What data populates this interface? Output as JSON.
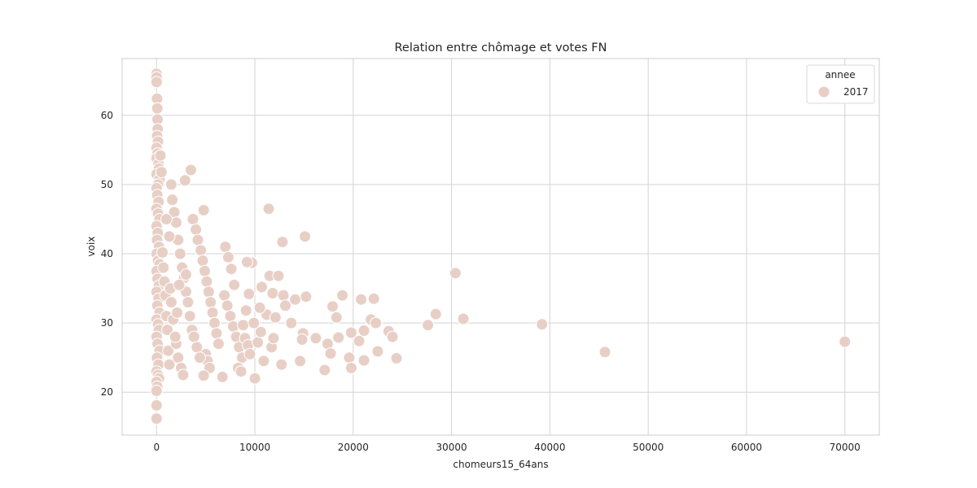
{
  "chart_data": {
    "type": "scatter",
    "title": "Relation entre chômage et votes FN",
    "xlabel": "chomeurs15_64ans",
    "ylabel": "voix",
    "xlim": [
      -3500,
      73500
    ],
    "ylim": [
      13.8,
      68.2
    ],
    "xticks": [
      0,
      10000,
      20000,
      30000,
      40000,
      50000,
      60000,
      70000
    ],
    "xtick_labels": [
      "0",
      "10000",
      "20000",
      "30000",
      "40000",
      "50000",
      "60000",
      "70000"
    ],
    "yticks": [
      20,
      30,
      40,
      50,
      60
    ],
    "ytick_labels": [
      "20",
      "30",
      "40",
      "50",
      "60"
    ],
    "grid": true,
    "legend": {
      "title": "annee",
      "position": "top-right",
      "entries": [
        "2017"
      ]
    },
    "colors": {
      "marker": "#e8cfc6",
      "marker_edge": "#ffffff",
      "grid": "#d4d4d4",
      "spine": "#cccccc",
      "text": "#262626"
    },
    "series": [
      {
        "name": "2017",
        "points": [
          [
            0,
            66
          ],
          [
            0,
            65.5
          ],
          [
            0,
            64.8
          ],
          [
            50,
            62.4
          ],
          [
            80,
            61
          ],
          [
            100,
            59.4
          ],
          [
            120,
            58
          ],
          [
            60,
            57
          ],
          [
            150,
            56.2
          ],
          [
            0,
            55.3
          ],
          [
            100,
            54.5
          ],
          [
            0,
            53.8
          ],
          [
            200,
            53
          ],
          [
            250,
            52.3
          ],
          [
            0,
            51.5
          ],
          [
            300,
            50.8
          ],
          [
            150,
            50
          ],
          [
            0,
            49.5
          ],
          [
            80,
            48.5
          ],
          [
            200,
            47.5
          ],
          [
            0,
            46.5
          ],
          [
            150,
            45.8
          ],
          [
            300,
            45
          ],
          [
            0,
            44
          ],
          [
            120,
            43
          ],
          [
            50,
            42
          ],
          [
            250,
            41
          ],
          [
            0,
            40
          ],
          [
            150,
            39
          ],
          [
            300,
            38.5
          ],
          [
            0,
            37.5
          ],
          [
            100,
            36.4
          ],
          [
            250,
            35.4
          ],
          [
            0,
            34.5
          ],
          [
            200,
            33.5
          ],
          [
            80,
            32.5
          ],
          [
            300,
            31.5
          ],
          [
            0,
            30.5
          ],
          [
            150,
            29.8
          ],
          [
            250,
            29
          ],
          [
            0,
            28
          ],
          [
            100,
            27
          ],
          [
            300,
            26
          ],
          [
            50,
            25
          ],
          [
            200,
            24
          ],
          [
            0,
            23
          ],
          [
            150,
            22.5
          ],
          [
            250,
            22
          ],
          [
            0,
            21.5
          ],
          [
            80,
            20.8
          ],
          [
            0,
            20.2
          ],
          [
            0,
            18.1
          ],
          [
            0,
            16.2
          ],
          [
            400,
            54.2
          ],
          [
            500,
            51.8
          ],
          [
            600,
            40.2
          ],
          [
            700,
            38
          ],
          [
            800,
            36
          ],
          [
            900,
            34
          ],
          [
            1000,
            31
          ],
          [
            1100,
            29
          ],
          [
            1200,
            26
          ],
          [
            1300,
            24
          ],
          [
            1400,
            35
          ],
          [
            1500,
            50
          ],
          [
            1600,
            47.8
          ],
          [
            1800,
            46
          ],
          [
            2000,
            44.5
          ],
          [
            2200,
            42
          ],
          [
            2400,
            40
          ],
          [
            2600,
            38
          ],
          [
            2800,
            36.5
          ],
          [
            3000,
            34.5
          ],
          [
            3200,
            33
          ],
          [
            3400,
            31
          ],
          [
            3600,
            29
          ],
          [
            2000,
            27
          ],
          [
            2200,
            25
          ],
          [
            2500,
            23.5
          ],
          [
            2700,
            22.5
          ],
          [
            3500,
            52.1
          ],
          [
            2900,
            50.6
          ],
          [
            4800,
            46.3
          ],
          [
            3700,
            45
          ],
          [
            4000,
            43.5
          ],
          [
            4200,
            42
          ],
          [
            4500,
            40.5
          ],
          [
            4700,
            39
          ],
          [
            4900,
            37.5
          ],
          [
            5100,
            36
          ],
          [
            5300,
            34.5
          ],
          [
            5500,
            33
          ],
          [
            5700,
            31.5
          ],
          [
            5900,
            30
          ],
          [
            6100,
            28.5
          ],
          [
            6300,
            27
          ],
          [
            5000,
            25.5
          ],
          [
            5200,
            24.5
          ],
          [
            5400,
            23.5
          ],
          [
            4800,
            22.4
          ],
          [
            6700,
            22.2
          ],
          [
            3800,
            28
          ],
          [
            4100,
            26.5
          ],
          [
            4400,
            25
          ],
          [
            3000,
            37
          ],
          [
            1500,
            33
          ],
          [
            1700,
            30.5
          ],
          [
            1900,
            28
          ],
          [
            2100,
            31.5
          ],
          [
            2300,
            35.5
          ],
          [
            1000,
            45
          ],
          [
            1300,
            42.5
          ],
          [
            7000,
            41
          ],
          [
            7300,
            39.5
          ],
          [
            7600,
            37.8
          ],
          [
            7900,
            35.5
          ],
          [
            6900,
            34
          ],
          [
            7200,
            32.5
          ],
          [
            7500,
            31
          ],
          [
            7800,
            29.5
          ],
          [
            8100,
            28
          ],
          [
            8400,
            26.5
          ],
          [
            8700,
            25
          ],
          [
            8300,
            23.5
          ],
          [
            8600,
            23
          ],
          [
            8800,
            29.7
          ],
          [
            9000,
            27.8
          ],
          [
            9300,
            26.8
          ],
          [
            9500,
            25.5
          ],
          [
            9100,
            31.8
          ],
          [
            9400,
            34.2
          ],
          [
            9700,
            38.7
          ],
          [
            9200,
            38.8
          ],
          [
            10000,
            22
          ],
          [
            10300,
            27.2
          ],
          [
            10600,
            28.7
          ],
          [
            10900,
            24.5
          ],
          [
            11200,
            31.2
          ],
          [
            11500,
            36.8
          ],
          [
            11800,
            34.3
          ],
          [
            12100,
            30.8
          ],
          [
            12400,
            36.8
          ],
          [
            11400,
            46.5
          ],
          [
            12800,
            41.7
          ],
          [
            12900,
            34
          ],
          [
            13100,
            32.5
          ],
          [
            12700,
            24
          ],
          [
            11700,
            26.5
          ],
          [
            11900,
            27.8
          ],
          [
            10700,
            35.2
          ],
          [
            10500,
            32.2
          ],
          [
            9900,
            30
          ],
          [
            13700,
            30
          ],
          [
            14100,
            33.4
          ],
          [
            14600,
            24.5
          ],
          [
            14900,
            28.5
          ],
          [
            14800,
            27.6
          ],
          [
            15200,
            33.8
          ],
          [
            15100,
            42.5
          ],
          [
            16200,
            27.8
          ],
          [
            17100,
            23.2
          ],
          [
            17400,
            27
          ],
          [
            17700,
            25.6
          ],
          [
            17900,
            32.4
          ],
          [
            18300,
            30.8
          ],
          [
            18500,
            27.9
          ],
          [
            18900,
            34
          ],
          [
            19600,
            25
          ],
          [
            19800,
            23.5
          ],
          [
            19800,
            28.6
          ],
          [
            20600,
            27.4
          ],
          [
            20800,
            33.4
          ],
          [
            21100,
            28.9
          ],
          [
            21100,
            24.6
          ],
          [
            21800,
            30.5
          ],
          [
            22100,
            33.5
          ],
          [
            22300,
            30
          ],
          [
            22500,
            25.9
          ],
          [
            23600,
            28.8
          ],
          [
            24000,
            28
          ],
          [
            24400,
            24.9
          ],
          [
            27600,
            29.7
          ],
          [
            28400,
            31.3
          ],
          [
            30400,
            37.2
          ],
          [
            31200,
            30.6
          ],
          [
            39200,
            29.8
          ],
          [
            45600,
            25.8
          ],
          [
            70000,
            27.3
          ]
        ]
      }
    ]
  }
}
